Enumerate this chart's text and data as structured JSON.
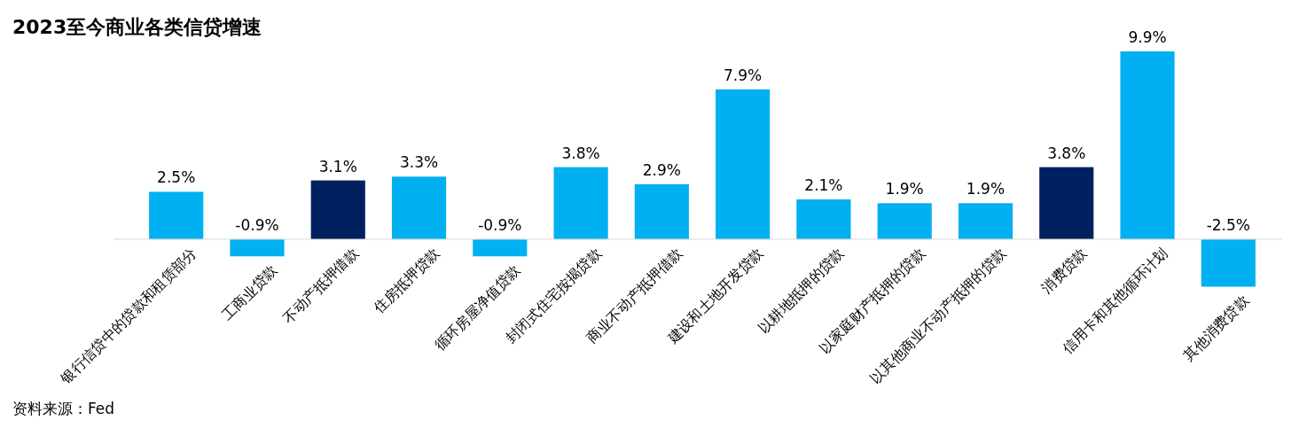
{
  "chart_data": {
    "type": "bar",
    "title": "2023至今商业各类信贷增速",
    "categories": [
      "银行信贷中的贷款和租赁部分",
      "工商业贷款",
      "不动产抵押借款",
      "住房抵押贷款",
      "循环房屋净值贷款",
      "封闭式住宅按揭贷款",
      "商业不动产抵押借款",
      "建设和土地开发贷款",
      "以耕地抵押的贷款",
      "以家庭财产抵押的贷款",
      "以其他商业不动产抵押的贷款",
      "消费贷款",
      "信用卡和其他循环计划",
      "其他消费贷款"
    ],
    "values": [
      2.5,
      -0.9,
      3.1,
      3.3,
      -0.9,
      3.8,
      2.9,
      7.9,
      2.1,
      1.9,
      1.9,
      3.8,
      9.9,
      -2.5
    ],
    "value_labels": [
      "2.5%",
      "-0.9%",
      "3.1%",
      "3.3%",
      "-0.9%",
      "3.8%",
      "2.9%",
      "7.9%",
      "2.1%",
      "1.9%",
      "1.9%",
      "3.8%",
      "9.9%",
      "-2.5%"
    ],
    "colors": [
      "#00b0f0",
      "#00b0f0",
      "#002060",
      "#00b0f0",
      "#00b0f0",
      "#00b0f0",
      "#00b0f0",
      "#00b0f0",
      "#00b0f0",
      "#00b0f0",
      "#00b0f0",
      "#002060",
      "#00b0f0",
      "#00b0f0"
    ],
    "annotations": [
      "资料来源：Fed"
    ]
  }
}
